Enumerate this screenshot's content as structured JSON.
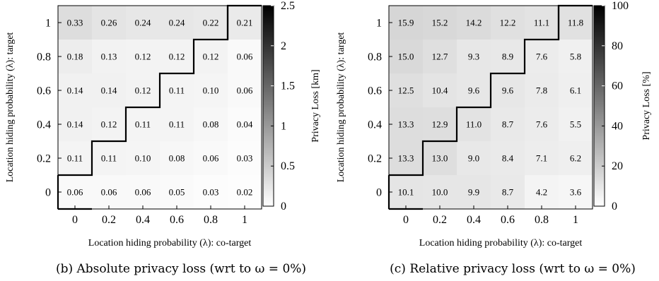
{
  "chart_data": [
    {
      "type": "heatmap",
      "panel_caption": "(b) Absolute privacy loss (wrt to ω = 0%)",
      "xlabel": "Location hiding probability (λ): co-target",
      "ylabel": "Location hiding probability (λ): target",
      "x_ticks": [
        "0",
        "0.2",
        "0.4",
        "0.6",
        "0.8",
        "1"
      ],
      "y_ticks": [
        "1",
        "0.8",
        "0.6",
        "0.4",
        "0.2",
        "0"
      ],
      "values": [
        [
          "0.33",
          "0.26",
          "0.24",
          "0.24",
          "0.22",
          "0.21"
        ],
        [
          "0.18",
          "0.13",
          "0.12",
          "0.12",
          "0.12",
          "0.06"
        ],
        [
          "0.14",
          "0.14",
          "0.12",
          "0.11",
          "0.10",
          "0.06"
        ],
        [
          "0.14",
          "0.12",
          "0.11",
          "0.11",
          "0.08",
          "0.04"
        ],
        [
          "0.11",
          "0.11",
          "0.10",
          "0.08",
          "0.06",
          "0.03"
        ],
        [
          "0.06",
          "0.06",
          "0.06",
          "0.05",
          "0.03",
          "0.02"
        ]
      ],
      "colorbar": {
        "label": "Privacy Loss [km]",
        "range": [
          0,
          2.5
        ],
        "ticks": [
          "0",
          "0.5",
          "1",
          "1.5",
          "2",
          "2.5"
        ]
      }
    },
    {
      "type": "heatmap",
      "panel_caption": "(c) Relative privacy loss (wrt to ω = 0%)",
      "xlabel": "Location hiding probability (λ): co-target",
      "ylabel": "Location hiding probability (λ): target",
      "x_ticks": [
        "0",
        "0.2",
        "0.4",
        "0.6",
        "0.8",
        "1"
      ],
      "y_ticks": [
        "1",
        "0.8",
        "0.6",
        "0.4",
        "0.2",
        "0"
      ],
      "values": [
        [
          "15.9",
          "15.2",
          "14.2",
          "12.2",
          "11.1",
          "11.8"
        ],
        [
          "15.0",
          "12.7",
          "9.3",
          "8.9",
          "7.6",
          "5.8"
        ],
        [
          "12.5",
          "10.4",
          "9.6",
          "9.6",
          "7.8",
          "6.1"
        ],
        [
          "13.3",
          "12.9",
          "11.0",
          "8.7",
          "7.6",
          "5.5"
        ],
        [
          "13.3",
          "13.0",
          "9.0",
          "8.4",
          "7.1",
          "6.2"
        ],
        [
          "10.1",
          "10.0",
          "9.9",
          "8.7",
          "4.2",
          "3.6"
        ]
      ],
      "colorbar": {
        "label": "Privacy Loss [%]",
        "range": [
          0,
          100
        ],
        "ticks": [
          "0",
          "20",
          "40",
          "60",
          "80",
          "100"
        ]
      }
    }
  ]
}
